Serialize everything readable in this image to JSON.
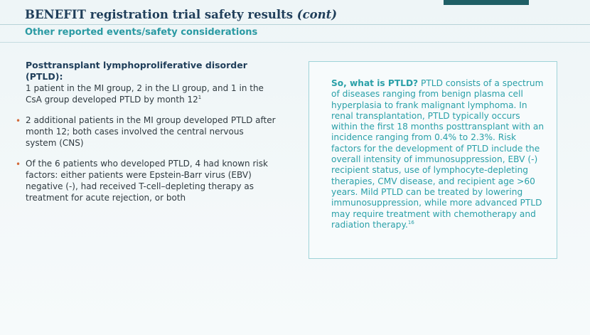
{
  "header": {
    "title_main": "BENEFIT registration trial safety results ",
    "title_italic": "(cont)",
    "subtitle": "Other reported events/safety considerations"
  },
  "left": {
    "heading": "Posttransplant lymphoproliferative disorder (PTLD):",
    "intro": "1 patient in the MI group, 2 in the LI group, and 1 in the CsA group developed PTLD by month 12",
    "intro_ref": "1",
    "bullets": [
      "2 additional patients in the MI group developed PTLD after month 12; both cases involved the central nervous system (CNS)",
      "Of the 6 patients who developed PTLD, 4 had known risk factors: either patients were Epstein-Barr virus (EBV) negative (-), had received T-cell–depleting therapy as treatment for acute rejection, or both"
    ],
    "bullet_glyph": "•"
  },
  "box": {
    "lead": "So, what is PTLD?",
    "body": " PTLD consists of a spectrum of diseases ranging from benign plasma cell hyperplasia to frank malignant lymphoma. In renal transplantation, PTLD typically occurs within the first 18 months posttransplant with an incidence ranging from 0.4% to 2.3%. Risk factors for the development of PTLD include the overall intensity of immunosuppression, EBV (-) recipient status, use of lymphocyte-depleting therapies, CMV disease, and recipient age >60 years. Mild PTLD can be treated by lowering immunosuppression, while more advanced PTLD may require treatment with chemotherapy and radiation therapy.",
    "ref": "16"
  },
  "colors": {
    "title": "#1f3e5a",
    "accent_teal": "#2a9aa3",
    "bullet": "#d36a3a",
    "header_bar": "#1f5f66"
  }
}
